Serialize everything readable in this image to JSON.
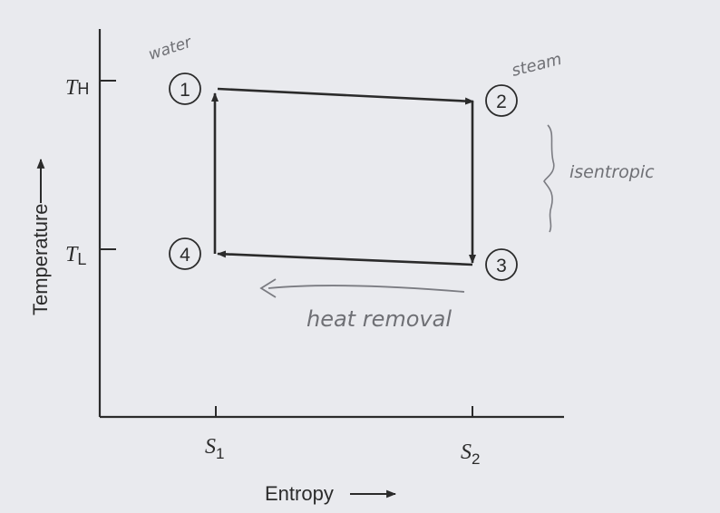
{
  "diagram": {
    "axes": {
      "y_label": "Temperature",
      "x_label": "Entropy",
      "y_ticks": [
        {
          "main": "T",
          "sub": "H"
        },
        {
          "main": "T",
          "sub": "L"
        }
      ],
      "x_ticks": [
        {
          "main": "S",
          "sub": "1"
        },
        {
          "main": "S",
          "sub": "2"
        }
      ]
    },
    "states": [
      "1",
      "2",
      "3",
      "4"
    ],
    "annotations": {
      "water": "water",
      "steam": "steam",
      "isentropic": "isentropic",
      "heat_removal": "heat removal"
    },
    "colors": {
      "ink": "#2b2b2b",
      "pencil": "#6f7075",
      "paper": "#e9eaee"
    }
  }
}
